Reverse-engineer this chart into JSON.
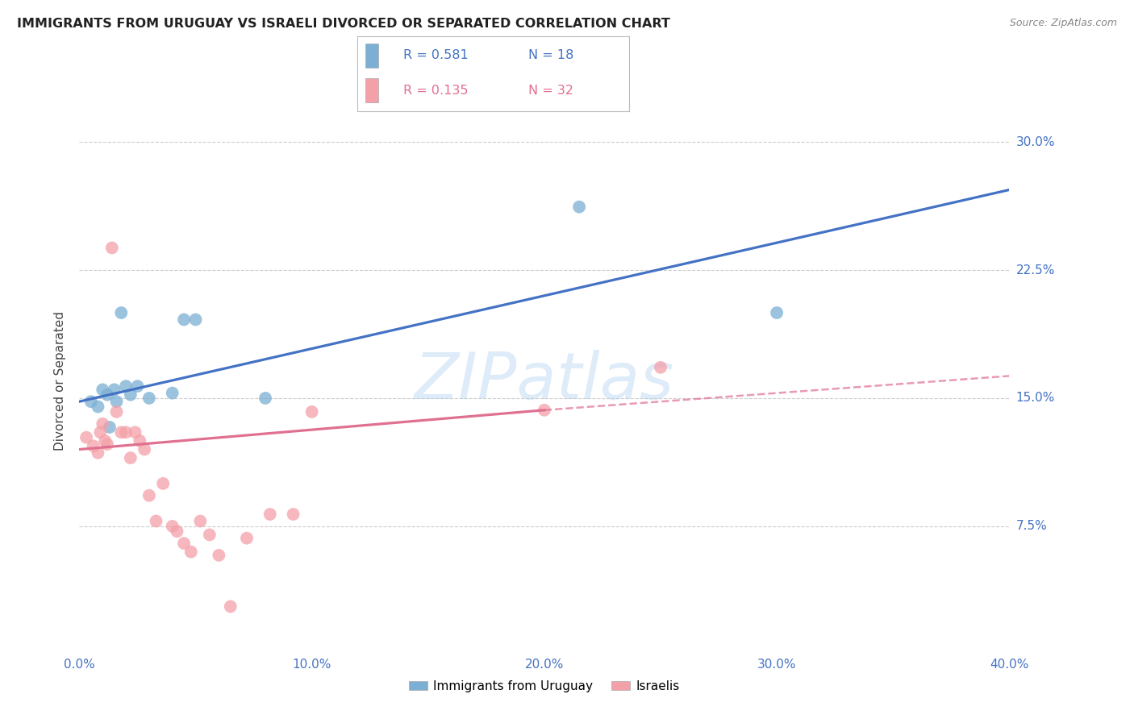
{
  "title": "IMMIGRANTS FROM URUGUAY VS ISRAELI DIVORCED OR SEPARATED CORRELATION CHART",
  "source": "Source: ZipAtlas.com",
  "ylabel": "Divorced or Separated",
  "xlim": [
    0.0,
    0.4
  ],
  "ylim": [
    0.0,
    0.32
  ],
  "xtick_values": [
    0.0,
    0.1,
    0.2,
    0.3,
    0.4
  ],
  "ytick_values": [
    0.075,
    0.15,
    0.225,
    0.3
  ],
  "ytick_labels": [
    "7.5%",
    "15.0%",
    "22.5%",
    "30.0%"
  ],
  "legend_series": [
    "Immigrants from Uruguay",
    "Israelis"
  ],
  "legend_R": [
    "0.581",
    "0.135"
  ],
  "legend_N": [
    "18",
    "32"
  ],
  "blue_dot_color": "#7BAFD4",
  "pink_dot_color": "#F4A0A8",
  "blue_line_color": "#4472C4",
  "pink_line_color": "#E07090",
  "watermark_text": "ZIPatlas",
  "blue_x": [
    0.005,
    0.008,
    0.01,
    0.012,
    0.013,
    0.015,
    0.016,
    0.018,
    0.02,
    0.022,
    0.025,
    0.03,
    0.04,
    0.045,
    0.05,
    0.08,
    0.215,
    0.3
  ],
  "blue_y": [
    0.148,
    0.145,
    0.155,
    0.152,
    0.133,
    0.155,
    0.148,
    0.2,
    0.157,
    0.152,
    0.157,
    0.15,
    0.153,
    0.196,
    0.196,
    0.15,
    0.262,
    0.2
  ],
  "pink_x": [
    0.003,
    0.006,
    0.008,
    0.009,
    0.01,
    0.011,
    0.012,
    0.014,
    0.016,
    0.018,
    0.02,
    0.022,
    0.024,
    0.026,
    0.028,
    0.03,
    0.033,
    0.036,
    0.04,
    0.042,
    0.045,
    0.048,
    0.052,
    0.056,
    0.06,
    0.065,
    0.072,
    0.082,
    0.092,
    0.1,
    0.2,
    0.25
  ],
  "pink_y": [
    0.127,
    0.122,
    0.118,
    0.13,
    0.135,
    0.125,
    0.123,
    0.238,
    0.142,
    0.13,
    0.13,
    0.115,
    0.13,
    0.125,
    0.12,
    0.093,
    0.078,
    0.1,
    0.075,
    0.072,
    0.065,
    0.06,
    0.078,
    0.07,
    0.058,
    0.028,
    0.068,
    0.082,
    0.082,
    0.142,
    0.143,
    0.168
  ],
  "blue_trend": [
    0.0,
    0.148,
    0.4,
    0.272
  ],
  "pink_solid_trend": [
    0.0,
    0.12,
    0.2,
    0.143
  ],
  "pink_dashed_trend": [
    0.2,
    0.143,
    0.4,
    0.163
  ],
  "background_color": "#FFFFFF",
  "grid_color": "#CCCCCC",
  "axis_color": "#4472C4",
  "title_color": "#222222",
  "source_color": "#888888"
}
